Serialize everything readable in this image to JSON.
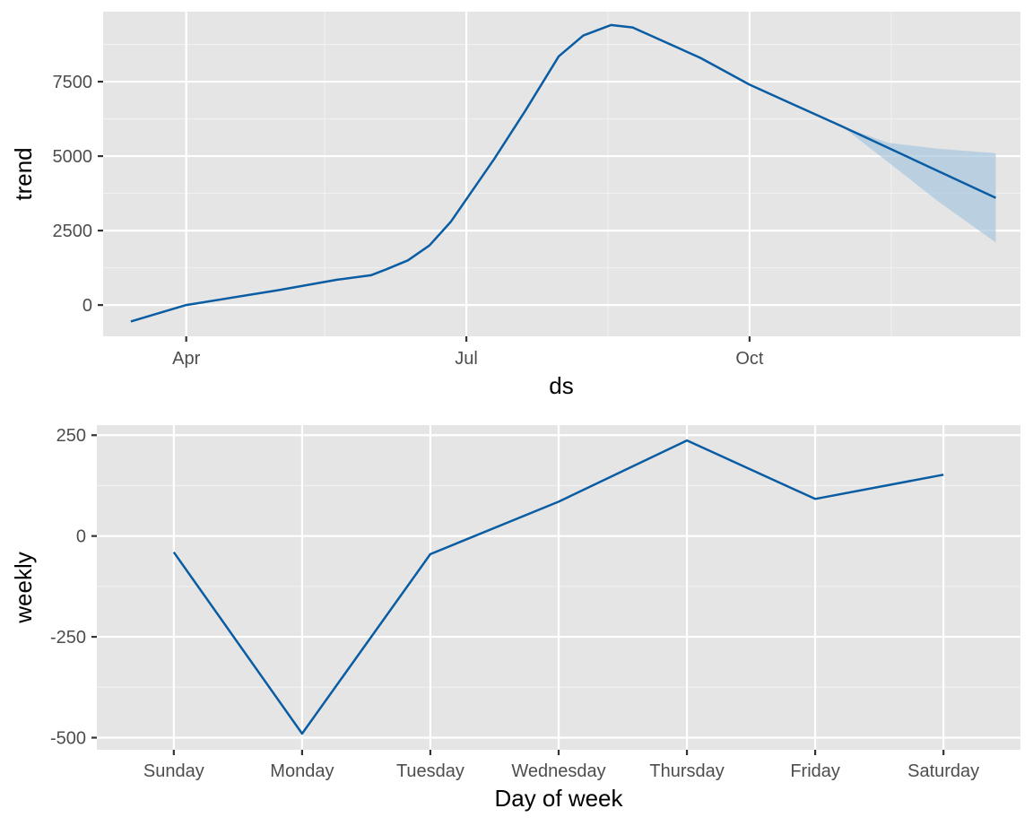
{
  "chart_data": [
    {
      "type": "area",
      "xlabel": "ds",
      "ylabel": "trend",
      "x_tick_labels": [
        "Apr",
        "Jul",
        "Oct"
      ],
      "x_ticks": [
        "2017-04-01",
        "2017-07-01",
        "2017-10-01"
      ],
      "x_minor_breaks": [
        "2017-05-16",
        "2017-08-16",
        "2017-11-16"
      ],
      "y_tick_labels": [
        "0",
        "2500",
        "5000",
        "7500"
      ],
      "y_ticks": [
        0,
        2500,
        5000,
        7500
      ],
      "y_minor_breaks": [
        1250,
        3750,
        6250,
        8750
      ],
      "xlim": [
        "2017-03-05",
        "2017-12-28"
      ],
      "ylim": [
        -1050,
        9850
      ],
      "grid": true,
      "line_color": "#0a5ca3",
      "band_color": "#a8c8e0",
      "series": [
        {
          "x": [
            "2017-03-14",
            "2017-04-01",
            "2017-05-01",
            "2017-05-20",
            "2017-05-31",
            "2017-06-05",
            "2017-06-12",
            "2017-06-19",
            "2017-06-26",
            "2017-07-10",
            "2017-07-20",
            "2017-07-31",
            "2017-08-08",
            "2017-08-17",
            "2017-08-24",
            "2017-09-15",
            "2017-10-01",
            "2017-10-31",
            "2017-12-20"
          ],
          "y": [
            -550,
            0,
            500,
            850,
            1000,
            1200,
            1500,
            2000,
            2800,
            4900,
            6500,
            8350,
            9050,
            9400,
            9320,
            8300,
            7400,
            6000,
            3600
          ]
        }
      ],
      "uncertainty_band": {
        "x": [
          "2017-10-31",
          "2017-11-15",
          "2017-12-01",
          "2017-12-20"
        ],
        "upper": [
          6000,
          5450,
          5250,
          5100
        ],
        "lower": [
          6000,
          4800,
          3500,
          2100
        ]
      }
    },
    {
      "type": "line",
      "xlabel": "Day of week",
      "ylabel": "weekly",
      "categories": [
        "Sunday",
        "Monday",
        "Tuesday",
        "Wednesday",
        "Thursday",
        "Friday",
        "Saturday"
      ],
      "y_tick_labels": [
        "-500",
        "-250",
        "0",
        "250"
      ],
      "y_ticks": [
        -500,
        -250,
        0,
        250
      ],
      "y_minor_breaks": [
        -375,
        -125,
        125
      ],
      "ylim": [
        -530,
        275
      ],
      "grid": true,
      "line_color": "#0a5ca3",
      "series": [
        {
          "values": [
            -40,
            -490,
            -45,
            85,
            237,
            92,
            152
          ]
        }
      ]
    }
  ]
}
